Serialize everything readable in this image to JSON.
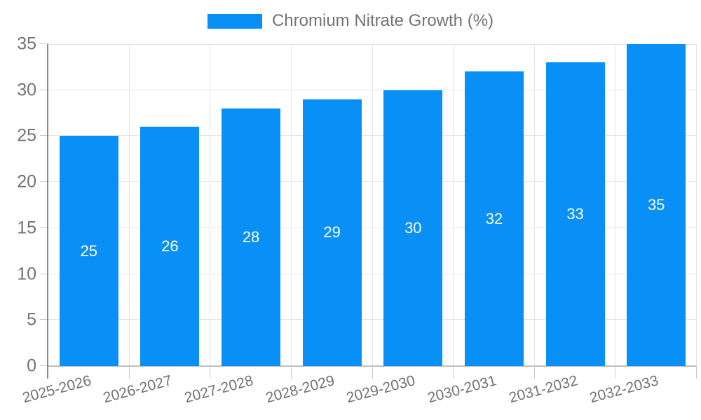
{
  "legend": {
    "label": "Chromium Nitrate Growth (%)"
  },
  "chart_data": {
    "type": "bar",
    "title": "Chromium Nitrate Growth (%)",
    "categories": [
      "2025-2026",
      "2026-2027",
      "2027-2028",
      "2028-2029",
      "2029-2030",
      "2030-2031",
      "2031-2032",
      "2032-2033"
    ],
    "values": [
      25,
      26,
      28,
      29,
      30,
      32,
      33,
      35
    ],
    "series": [
      {
        "name": "Chromium Nitrate Growth (%)",
        "values": [
          25,
          26,
          28,
          29,
          30,
          32,
          33,
          35
        ]
      }
    ],
    "xlabel": "",
    "ylabel": "",
    "ylim": [
      0,
      35
    ],
    "yticks": [
      0,
      5,
      10,
      15,
      20,
      25,
      30,
      35
    ],
    "grid": true,
    "bar_value_labels_shown": true,
    "legend_position": "top",
    "x_label_rotation_deg": -15,
    "colors": {
      "bar": "#0990f6",
      "bar_label": "#ffffff",
      "axis_text": "#737373",
      "grid_line": "#e5e5e5",
      "axis_line": "#8c8c8c",
      "baseline": "#bfbfbf",
      "tick": "#c9c9c9",
      "background": "#ffffff"
    }
  }
}
